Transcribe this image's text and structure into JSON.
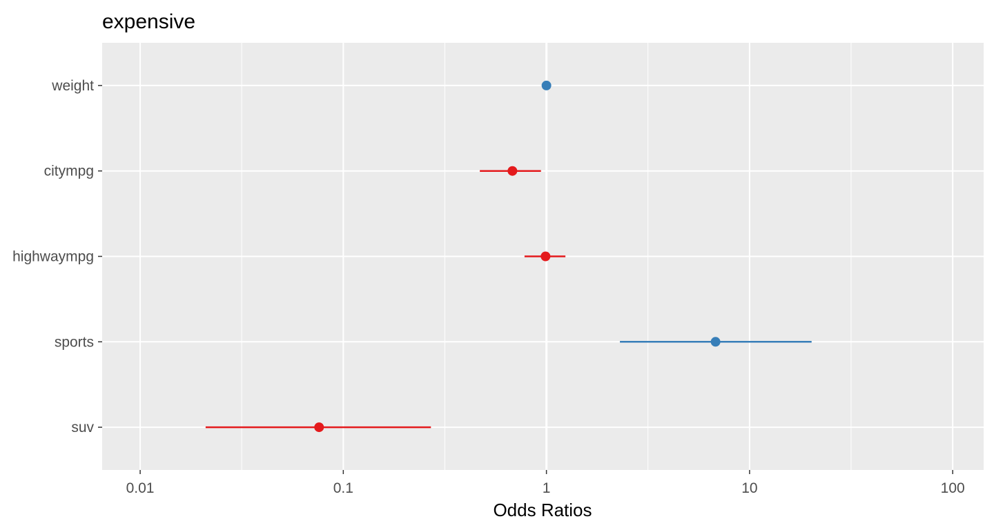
{
  "chart_data": {
    "type": "scatter",
    "title": "expensive",
    "xlabel": "Odds Ratios",
    "ylabel": "",
    "x_scale": "log10",
    "xlim": [
      0.0065,
      142
    ],
    "x_ticks": [
      {
        "value": 0.01,
        "label": "0.01"
      },
      {
        "value": 0.1,
        "label": "0.1"
      },
      {
        "value": 1,
        "label": "1"
      },
      {
        "value": 10,
        "label": "10"
      },
      {
        "value": 100,
        "label": "100"
      }
    ],
    "x_minor_ticks": [
      0.0316,
      0.316,
      3.16,
      31.6
    ],
    "categories": [
      "weight",
      "citympg",
      "highwaympg",
      "sports",
      "suv"
    ],
    "grid": true,
    "legend": "none",
    "reference_line": 1,
    "points": [
      {
        "term": "weight",
        "estimate": 1.0,
        "conf_low": 1.0,
        "conf_high": 1.0,
        "direction": "positive"
      },
      {
        "term": "citympg",
        "estimate": 0.68,
        "conf_low": 0.47,
        "conf_high": 0.94,
        "direction": "negative"
      },
      {
        "term": "highwaympg",
        "estimate": 0.99,
        "conf_low": 0.78,
        "conf_high": 1.24,
        "direction": "negative"
      },
      {
        "term": "sports",
        "estimate": 6.8,
        "conf_low": 2.3,
        "conf_high": 20.2,
        "direction": "positive"
      },
      {
        "term": "suv",
        "estimate": 0.076,
        "conf_low": 0.021,
        "conf_high": 0.27,
        "direction": "negative"
      }
    ],
    "colors": {
      "positive": "#377eb8",
      "negative": "#e41a1c",
      "panel_background": "#ebebeb",
      "grid": "#ffffff",
      "reference_line": "#ffffff"
    }
  }
}
